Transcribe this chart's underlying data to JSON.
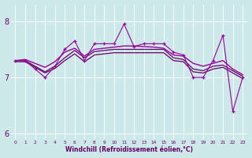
{
  "x": [
    0,
    1,
    2,
    3,
    4,
    5,
    6,
    7,
    8,
    9,
    10,
    11,
    12,
    13,
    14,
    15,
    16,
    17,
    18,
    19,
    20,
    21,
    22,
    23
  ],
  "line_jagged": [
    7.3,
    7.3,
    7.15,
    7.0,
    7.2,
    7.5,
    7.65,
    7.3,
    7.6,
    7.6,
    7.6,
    7.95,
    7.55,
    7.6,
    7.6,
    7.6,
    7.45,
    7.4,
    7.0,
    7.0,
    7.3,
    7.75,
    6.4,
    7.0
  ],
  "line_trend": [
    7.3,
    7.32,
    7.25,
    7.18,
    7.28,
    7.45,
    7.52,
    7.38,
    7.5,
    7.52,
    7.54,
    7.56,
    7.56,
    7.55,
    7.54,
    7.52,
    7.4,
    7.38,
    7.25,
    7.2,
    7.25,
    7.3,
    7.15,
    7.05
  ],
  "line_upper": [
    7.3,
    7.3,
    7.2,
    7.1,
    7.2,
    7.35,
    7.48,
    7.35,
    7.46,
    7.48,
    7.5,
    7.5,
    7.5,
    7.5,
    7.5,
    7.5,
    7.35,
    7.32,
    7.15,
    7.12,
    7.2,
    7.22,
    7.12,
    7.02
  ],
  "line_lower": [
    7.28,
    7.28,
    7.18,
    7.08,
    7.16,
    7.3,
    7.42,
    7.28,
    7.4,
    7.42,
    7.44,
    7.44,
    7.44,
    7.44,
    7.44,
    7.44,
    7.3,
    7.28,
    7.1,
    7.08,
    7.15,
    7.18,
    7.08,
    6.98
  ],
  "color_jagged": "#990099",
  "color_trend": "#990099",
  "color_upper": "#660066",
  "color_lower": "#660066",
  "bgcolor": "#cce8e8",
  "grid_color": "#aacccc",
  "ylim": [
    5.9,
    8.3
  ],
  "yticks": [
    6,
    7,
    8
  ],
  "xlim": [
    -0.5,
    23.5
  ],
  "xlabel": "Windchill (Refroidissement éolien,°C)"
}
